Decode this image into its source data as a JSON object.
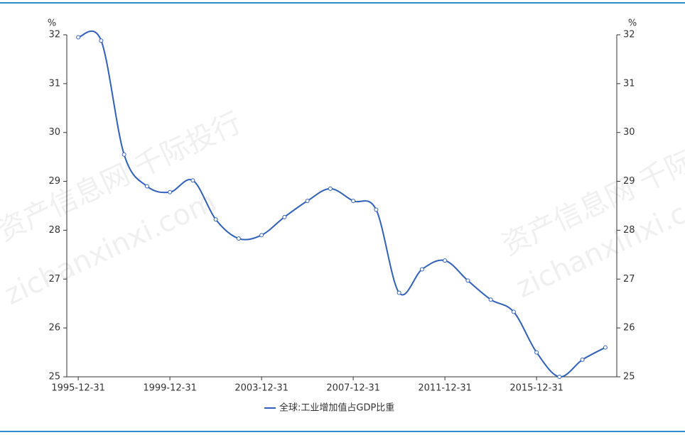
{
  "chart_data": {
    "type": "line",
    "y_unit": "%",
    "y2_unit": "%",
    "categories": [
      "1995-12-31",
      null,
      null,
      null,
      "1999-12-31",
      null,
      null,
      null,
      "2003-12-31",
      null,
      null,
      null,
      "2007-12-31",
      null,
      null,
      null,
      "2011-12-31",
      null,
      null,
      null,
      "2015-12-31",
      null,
      null,
      null
    ],
    "series": [
      {
        "name": "全球:工业增加值占GDP比重",
        "color": "#3060b8",
        "values": [
          31.95,
          31.88,
          29.55,
          28.9,
          28.78,
          29.02,
          28.22,
          27.83,
          27.9,
          28.27,
          28.6,
          28.85,
          28.6,
          28.42,
          26.72,
          27.2,
          27.38,
          26.97,
          26.58,
          26.33,
          25.5,
          25.0,
          25.35,
          25.6
        ]
      }
    ],
    "ylim": [
      25,
      32
    ],
    "yticks": [
      25,
      26,
      27,
      28,
      29,
      30,
      31,
      32
    ],
    "y2lim": [
      25,
      32
    ],
    "y2ticks": [
      25,
      26,
      27,
      28,
      29,
      30,
      31,
      32
    ],
    "watermark": [
      "资产信息网 千际投行",
      "zichanxinxi.com",
      "资产信息网 千际投行",
      "zichanxinxi.com"
    ]
  }
}
